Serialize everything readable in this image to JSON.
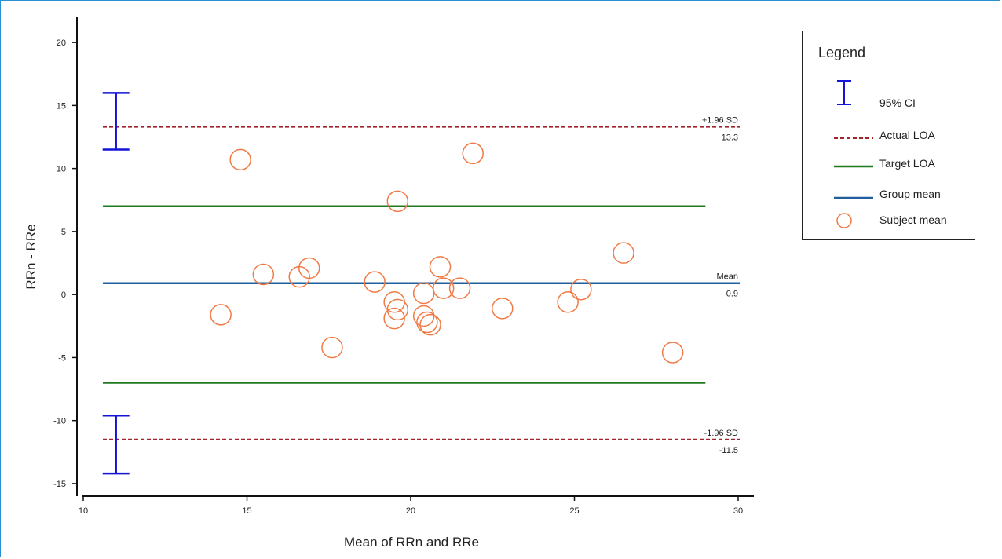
{
  "chart_data": {
    "type": "scatter",
    "xlabel": "Mean of RRn and RRe",
    "ylabel": "RRn - RRe",
    "xlim": [
      10,
      30
    ],
    "ylim": [
      -16,
      22
    ],
    "x_ticks": [
      10,
      15,
      20,
      25,
      30
    ],
    "y_ticks": [
      -15,
      -10,
      -5,
      0,
      5,
      10,
      15,
      20
    ],
    "grid": false,
    "legend_position": "top-right (outside plot)",
    "mean": {
      "value": 0.9,
      "label": "Mean",
      "value_label": "0.9",
      "color": "#1f5f9e"
    },
    "upper_loa": {
      "value": 13.3,
      "label": "+1.96 SD",
      "value_label": "13.3",
      "color": "#a0242a"
    },
    "lower_loa": {
      "value": -11.5,
      "label": "-1.96 SD",
      "value_label": "-11.5",
      "color": "#a0242a"
    },
    "target_loa": {
      "upper": 7,
      "lower": -7,
      "color": "#1f7a1f"
    },
    "ci_upper": {
      "x": 11,
      "low": 11.5,
      "high": 16,
      "color": "#1414d8"
    },
    "ci_lower": {
      "x": 11,
      "low": -14.2,
      "high": -9.6,
      "color": "#1414d8"
    },
    "subject_color": "#f07a45",
    "points": [
      {
        "x": 14.8,
        "y": 10.7
      },
      {
        "x": 21.9,
        "y": 11.2
      },
      {
        "x": 19.6,
        "y": 7.4
      },
      {
        "x": 26.5,
        "y": 3.3
      },
      {
        "x": 15.5,
        "y": 1.6
      },
      {
        "x": 16.6,
        "y": 1.4
      },
      {
        "x": 16.9,
        "y": 2.1
      },
      {
        "x": 18.9,
        "y": 1.0
      },
      {
        "x": 20.9,
        "y": 2.2
      },
      {
        "x": 21.0,
        "y": 0.5
      },
      {
        "x": 21.5,
        "y": 0.5
      },
      {
        "x": 20.4,
        "y": 0.1
      },
      {
        "x": 25.2,
        "y": 0.4
      },
      {
        "x": 14.2,
        "y": -1.6
      },
      {
        "x": 19.5,
        "y": -0.6
      },
      {
        "x": 19.6,
        "y": -1.2
      },
      {
        "x": 19.5,
        "y": -1.9
      },
      {
        "x": 20.4,
        "y": -1.7
      },
      {
        "x": 20.5,
        "y": -2.2
      },
      {
        "x": 20.6,
        "y": -2.4
      },
      {
        "x": 22.8,
        "y": -1.1
      },
      {
        "x": 24.8,
        "y": -0.6
      },
      {
        "x": 17.6,
        "y": -4.2
      },
      {
        "x": 28.0,
        "y": -4.6
      }
    ]
  },
  "legend": {
    "title": "Legend",
    "items": [
      {
        "label": "95% CI",
        "symbol": "ci-bar-icon"
      },
      {
        "label": "Actual LOA",
        "symbol": "dashed-line-icon"
      },
      {
        "label": "Target LOA",
        "symbol": "solid-green-line-icon"
      },
      {
        "label": "Group mean",
        "symbol": "solid-blue-line-icon"
      },
      {
        "label": "Subject mean",
        "symbol": "circle-icon"
      }
    ]
  }
}
